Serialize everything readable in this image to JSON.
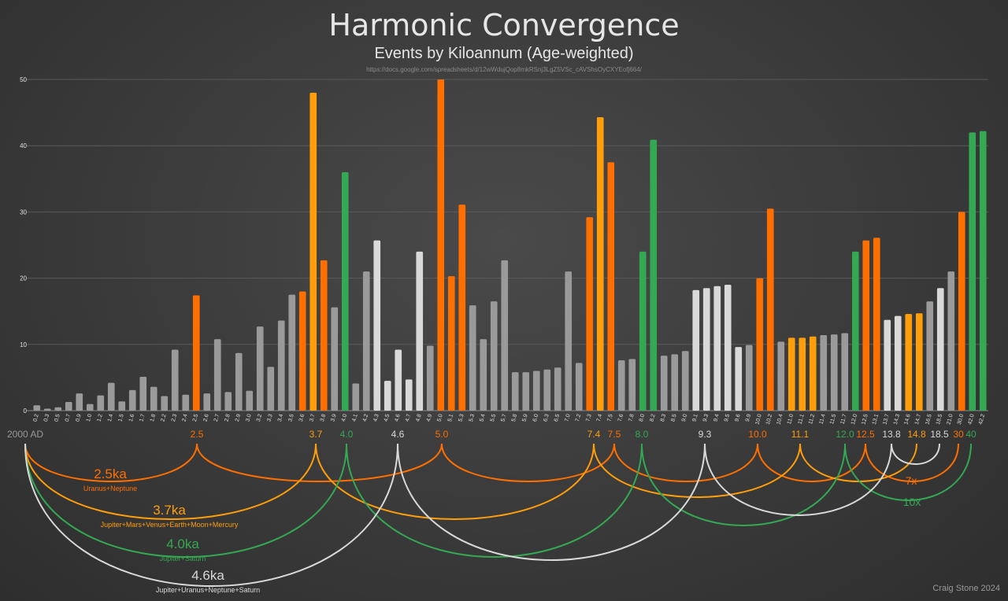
{
  "header": {
    "title": "Harmonic Convergence",
    "subtitle": "Events by Kiloannum (Age-weighted)",
    "url": "https://docs.google.com/spreadsheets/d/12wWdujQop8mkRSnj3LgZ5VSc_cAVShsOyCXYEofj664/",
    "credit": "Craig Stone 2024"
  },
  "colors": {
    "gray": "#9a9a9a",
    "white": "#d9d9d9",
    "orange": "#ff6f00",
    "amber": "#ff9e0b",
    "green": "#34a853",
    "grid": "#5a5a5a",
    "axis_text": "#e0e0e0",
    "baseline": "#8a8a8a"
  },
  "chart_data": {
    "type": "bar",
    "ylim": [
      0,
      50
    ],
    "yticks": [
      0,
      10,
      20,
      30,
      40,
      50
    ],
    "grid": true,
    "categories": [
      "0.2",
      "0.3",
      "0.5",
      "0.7",
      "0.9",
      "1.0",
      "1.2",
      "1.4",
      "1.5",
      "1.6",
      "1.7",
      "1.8",
      "2.2",
      "2.3",
      "2.4",
      "2.5",
      "2.6",
      "2.7",
      "2.8",
      "2.9",
      "3.0",
      "3.2",
      "3.3",
      "3.4",
      "3.5",
      "3.6",
      "3.7",
      "3.8",
      "3.9",
      "4.0",
      "4.1",
      "4.2",
      "4.3",
      "4.5",
      "4.6",
      "4.7",
      "4.8",
      "4.9",
      "5.0",
      "5.1",
      "5.3",
      "5.3",
      "5.4",
      "5.5",
      "5.7",
      "5.8",
      "5.9",
      "6.0",
      "6.3",
      "6.5",
      "7.0",
      "7.2",
      "7.3",
      "7.4",
      "7.5",
      "7.6",
      "7.8",
      "8.0",
      "8.2",
      "8.3",
      "8.5",
      "9.0",
      "9.1",
      "9.3",
      "9.4",
      "9.5",
      "9.6",
      "9.9",
      "10.0",
      "10.2",
      "10.4",
      "11.0",
      "11.1",
      "11.2",
      "11.4",
      "11.5",
      "11.7",
      "12.0",
      "12.5",
      "13.1",
      "13.7",
      "14.3",
      "14.6",
      "14.7",
      "16.5",
      "18.5",
      "21.0",
      "30.0",
      "42.0",
      "42.2"
    ],
    "series": [
      {
        "values": [
          0.8,
          0.3,
          0.5,
          1.3,
          2.6,
          1.0,
          2.3,
          4.2,
          1.4,
          3.1,
          5.1,
          3.6,
          2.2,
          9.2,
          2.4,
          17.4,
          2.6,
          10.8,
          2.8,
          8.7,
          3.0,
          12.7,
          6.6,
          13.6,
          17.5,
          18.0,
          48.0,
          22.7,
          15.6,
          36.0,
          4.1,
          21.0,
          25.7,
          4.5,
          9.2,
          4.7,
          24.0,
          9.8,
          50.0,
          20.3,
          31.1,
          15.9,
          10.8,
          16.5,
          22.7,
          5.8,
          5.8,
          6.0,
          6.2,
          6.5,
          21.0,
          7.2,
          29.2,
          44.3,
          37.5,
          7.6,
          7.8,
          24.0,
          40.9,
          8.3,
          8.5,
          9.0,
          18.2,
          18.5,
          18.8,
          19.0,
          9.6,
          9.9,
          20.0,
          30.5,
          10.4,
          11.0,
          11.0,
          11.2,
          11.4,
          11.5,
          11.7,
          24.0,
          25.7,
          26.1,
          13.7,
          14.3,
          14.6,
          14.7,
          16.5,
          18.5,
          21.0,
          30.0,
          42.0,
          42.2
        ],
        "colors": [
          "gray",
          "gray",
          "gray",
          "gray",
          "gray",
          "gray",
          "gray",
          "gray",
          "gray",
          "gray",
          "gray",
          "gray",
          "gray",
          "gray",
          "gray",
          "orange",
          "gray",
          "gray",
          "gray",
          "gray",
          "gray",
          "gray",
          "gray",
          "gray",
          "gray",
          "orange",
          "amber",
          "orange",
          "gray",
          "green",
          "gray",
          "gray",
          "white",
          "white",
          "white",
          "white",
          "white",
          "gray",
          "orange",
          "orange",
          "orange",
          "gray",
          "gray",
          "gray",
          "gray",
          "gray",
          "gray",
          "gray",
          "gray",
          "gray",
          "gray",
          "gray",
          "orange",
          "amber",
          "orange",
          "gray",
          "gray",
          "green",
          "green",
          "gray",
          "gray",
          "gray",
          "white",
          "white",
          "white",
          "white",
          "white",
          "gray",
          "orange",
          "orange",
          "gray",
          "amber",
          "amber",
          "amber",
          "gray",
          "gray",
          "gray",
          "green",
          "orange",
          "orange",
          "white",
          "white",
          "amber",
          "amber",
          "gray",
          "white",
          "gray",
          "orange",
          "green",
          "green"
        ]
      }
    ],
    "timeline": {
      "markers": [
        {
          "label": "2000 AD",
          "color": "gray"
        },
        {
          "label": "2.5",
          "color": "orange"
        },
        {
          "label": "3.7",
          "color": "amber"
        },
        {
          "label": "4.0",
          "color": "green"
        },
        {
          "label": "4.6",
          "color": "white"
        },
        {
          "label": "5.0",
          "color": "orange"
        },
        {
          "label": "7.4",
          "color": "amber"
        },
        {
          "label": "7.5",
          "color": "orange"
        },
        {
          "label": "8.0",
          "color": "green"
        },
        {
          "label": "9.3",
          "color": "white"
        },
        {
          "label": "10.0",
          "color": "orange"
        },
        {
          "label": "11.1",
          "color": "amber"
        },
        {
          "label": "12.0",
          "color": "green"
        },
        {
          "label": "12.5",
          "color": "orange"
        },
        {
          "label": "13.8",
          "color": "white"
        },
        {
          "label": "14.8",
          "color": "amber"
        },
        {
          "label": "18.5",
          "color": "white"
        },
        {
          "label": "30",
          "color": "orange"
        },
        {
          "label": "40",
          "color": "green"
        }
      ],
      "cycles": [
        {
          "period": "2.5ka",
          "planets": "Uranus+Neptune",
          "color": "orange"
        },
        {
          "period": "3.7ka",
          "planets": "Jupiter+Mars+Venus+Earth+Moon+Mercury",
          "color": "amber"
        },
        {
          "period": "4.0ka",
          "planets": "Jupiter+Saturn",
          "color": "green"
        },
        {
          "period": "4.6ka",
          "planets": "Jupiter+Uranus+Neptune+Saturn",
          "color": "white"
        }
      ],
      "multipliers": [
        {
          "label": "7x",
          "color": "orange"
        },
        {
          "label": "10x",
          "color": "green"
        }
      ]
    }
  }
}
